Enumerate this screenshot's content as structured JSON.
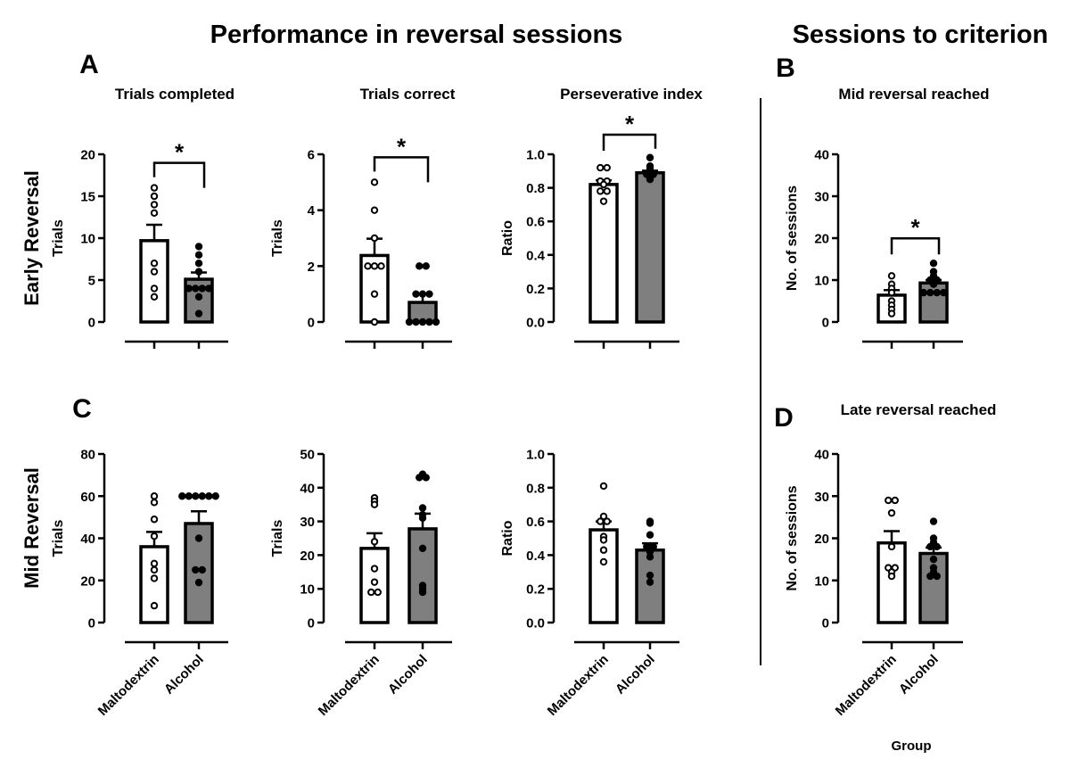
{
  "colors": {
    "maltodextrin_fill": "#ffffff",
    "alcohol_fill": "#7f7f7f",
    "stroke": "#000000"
  },
  "titles": {
    "main_left": "Performance in reversal sessions",
    "main_right": "Sessions to criterion",
    "row_early": "Early Reversal",
    "row_mid": "Mid Reversal",
    "x_group_label": "Group"
  },
  "panel_letters": {
    "a": "A",
    "b": "B",
    "c": "C",
    "d": "D"
  },
  "chart_data": [
    {
      "type": "bar",
      "id": "A1",
      "title": "Trials completed",
      "ylabel": "Trials",
      "ylim": [
        0,
        20
      ],
      "yticks": [
        0,
        5,
        10,
        15,
        20
      ],
      "significance": "*",
      "groups": [
        {
          "name": "Maltodextrin",
          "mean": 9.7,
          "sem": 1.9,
          "points": [
            16,
            15,
            14,
            13,
            7,
            6,
            4,
            3
          ]
        },
        {
          "name": "Alcohol",
          "mean": 5.1,
          "sem": 0.8,
          "points": [
            9,
            8,
            7,
            6,
            4,
            4,
            4,
            4,
            3,
            1
          ]
        }
      ]
    },
    {
      "type": "bar",
      "id": "A2",
      "title": "Trials correct",
      "ylabel": "Trials",
      "ylim": [
        0,
        6
      ],
      "yticks": [
        0,
        2,
        4,
        6
      ],
      "significance": "*",
      "groups": [
        {
          "name": "Maltodextrin",
          "mean": 2.38,
          "sem": 0.6,
          "points": [
            5,
            4,
            3,
            2,
            2,
            2,
            1,
            0
          ]
        },
        {
          "name": "Alcohol",
          "mean": 0.7,
          "sem": 0.3,
          "points": [
            2,
            2,
            1,
            1,
            1,
            0,
            0,
            0,
            0,
            0
          ]
        }
      ]
    },
    {
      "type": "bar",
      "id": "A3",
      "title": "Perseverative index",
      "ylabel": "Ratio",
      "ylim": [
        0,
        1
      ],
      "yticks": [
        "0.0",
        "0.2",
        "0.4",
        "0.6",
        "0.8",
        "1.0"
      ],
      "significance": "*",
      "groups": [
        {
          "name": "Maltodextrin",
          "mean": 0.82,
          "sem": 0.025,
          "points": [
            0.92,
            0.92,
            0.84,
            0.84,
            0.82,
            0.78,
            0.78,
            0.72
          ]
        },
        {
          "name": "Alcohol",
          "mean": 0.89,
          "sem": 0.012,
          "points": [
            0.98,
            0.93,
            0.92,
            0.91,
            0.9,
            0.88,
            0.88,
            0.87,
            0.86,
            0.85
          ]
        }
      ]
    },
    {
      "type": "bar",
      "id": "B",
      "title": "Mid reversal reached",
      "ylabel": "No. of sessions",
      "ylim": [
        0,
        40
      ],
      "yticks": [
        0,
        10,
        20,
        30,
        40
      ],
      "significance": "*",
      "groups": [
        {
          "name": "Maltodextrin",
          "mean": 6.4,
          "sem": 1.2,
          "points": [
            11,
            9,
            8,
            7,
            5,
            4,
            3,
            2
          ]
        },
        {
          "name": "Alcohol",
          "mean": 9.3,
          "sem": 0.7,
          "points": [
            14,
            12,
            11,
            10,
            10,
            9,
            7,
            7,
            7,
            7
          ]
        }
      ]
    },
    {
      "type": "bar",
      "id": "C1",
      "title": "",
      "ylabel": "Trials",
      "ylim": [
        0,
        80
      ],
      "yticks": [
        0,
        20,
        40,
        60,
        80
      ],
      "significance": "",
      "groups": [
        {
          "name": "Maltodextrin",
          "mean": 36,
          "sem": 7,
          "points": [
            60,
            57,
            49,
            41,
            28,
            25,
            21,
            8
          ]
        },
        {
          "name": "Alcohol",
          "mean": 47,
          "sem": 5.8,
          "points": [
            60,
            60,
            60,
            60,
            60,
            60,
            40,
            25,
            25,
            19
          ]
        }
      ]
    },
    {
      "type": "bar",
      "id": "C2",
      "title": "",
      "ylabel": "Trials",
      "ylim": [
        0,
        50
      ],
      "yticks": [
        0,
        10,
        20,
        30,
        40,
        50
      ],
      "significance": "",
      "groups": [
        {
          "name": "Maltodextrin",
          "mean": 22,
          "sem": 4.5,
          "points": [
            37,
            36,
            35,
            24,
            16,
            12,
            9,
            9
          ]
        },
        {
          "name": "Alcohol",
          "mean": 27.8,
          "sem": 4.5,
          "points": [
            44,
            43,
            43,
            34,
            32,
            31,
            22,
            11,
            10,
            9
          ]
        }
      ]
    },
    {
      "type": "bar",
      "id": "C3",
      "title": "",
      "ylabel": "Ratio",
      "ylim": [
        0,
        1
      ],
      "yticks": [
        "0.0",
        "0.2",
        "0.4",
        "0.6",
        "0.8",
        "1.0"
      ],
      "significance": "",
      "groups": [
        {
          "name": "Maltodextrin",
          "mean": 0.55,
          "sem": 0.05,
          "points": [
            0.81,
            0.63,
            0.6,
            0.6,
            0.51,
            0.49,
            0.43,
            0.36
          ]
        },
        {
          "name": "Alcohol",
          "mean": 0.43,
          "sem": 0.04,
          "points": [
            0.6,
            0.59,
            0.52,
            0.45,
            0.45,
            0.42,
            0.39,
            0.28,
            0.24
          ]
        }
      ]
    },
    {
      "type": "bar",
      "id": "D",
      "title": "Late reversal reached",
      "ylabel": "No. of sessions",
      "ylim": [
        0,
        40
      ],
      "yticks": [
        0,
        10,
        20,
        30,
        40
      ],
      "significance": "",
      "groups": [
        {
          "name": "Maltodextrin",
          "mean": 18.9,
          "sem": 2.8,
          "points": [
            29,
            29,
            26,
            18,
            13,
            13,
            12,
            11
          ]
        },
        {
          "name": "Alcohol",
          "mean": 16.4,
          "sem": 1.4,
          "points": [
            24,
            20,
            19,
            18,
            18,
            15,
            13,
            12,
            11,
            11
          ]
        }
      ]
    }
  ]
}
